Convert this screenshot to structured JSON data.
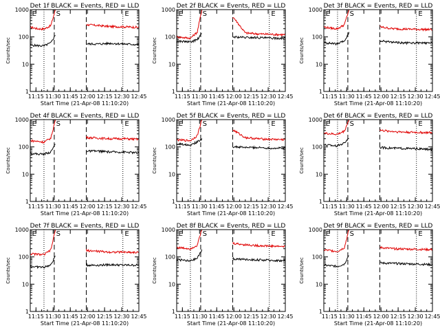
{
  "colors": {
    "events": "#000000",
    "lld": "#e00000",
    "background": "#ffffff"
  },
  "chart_data": {
    "type": "line",
    "scale": "log",
    "ylim": [
      1,
      1000
    ],
    "xlim_minutes": [
      0,
      95
    ],
    "x_tick_labels": [
      "11:15",
      "11:30",
      "11:45",
      "12:00",
      "12:15",
      "12:30",
      "12:45"
    ],
    "x_tick_minutes": [
      5,
      20,
      35,
      50,
      65,
      80,
      95
    ],
    "y_tick_labels": [
      "1",
      "10",
      "100",
      "1000"
    ],
    "y_tick_values": [
      1,
      10,
      100,
      1000
    ],
    "ylabel": "Counts/sec",
    "xlabel": "Start Time (21-Apr-08 11:10:20)",
    "dotted_lines_minutes": [
      12,
      81
    ],
    "dashed_lines_minutes": [
      21,
      49
    ],
    "markers": [
      {
        "label": "E",
        "minute": 1
      },
      {
        "label": "S",
        "minute": 22
      },
      {
        "label": "E",
        "minute": 82
      }
    ],
    "series_names": [
      "Events",
      "LLD"
    ],
    "panels": [
      {
        "title": "Det 1f BLACK = Events, RED = LLD",
        "events": [
          50,
          48,
          47,
          60,
          120,
          55,
          55,
          58,
          55,
          52
        ],
        "lld": [
          230,
          200,
          195,
          260,
          1000,
          280,
          260,
          240,
          235,
          225
        ]
      },
      {
        "title": "Det 2f BLACK = Events, RED = LLD",
        "events": [
          70,
          68,
          65,
          80,
          130,
          100,
          95,
          95,
          90,
          90
        ],
        "lld": [
          100,
          95,
          90,
          150,
          1000,
          500,
          140,
          130,
          125,
          120
        ]
      },
      {
        "title": "Det 3f BLACK = Events, RED = LLD",
        "events": [
          60,
          58,
          55,
          70,
          140,
          70,
          65,
          60,
          60,
          58
        ],
        "lld": [
          230,
          210,
          200,
          280,
          1000,
          230,
          200,
          195,
          190,
          185
        ]
      },
      {
        "title": "Det 4f BLACK = Events, RED = LLD",
        "events": [
          60,
          55,
          55,
          65,
          130,
          70,
          70,
          65,
          65,
          60
        ],
        "lld": [
          170,
          160,
          150,
          210,
          1000,
          220,
          210,
          200,
          200,
          190
        ]
      },
      {
        "title": "Det 5f BLACK = Events, RED = LLD",
        "events": [
          130,
          125,
          120,
          150,
          200,
          100,
          95,
          95,
          90,
          90
        ],
        "lld": [
          180,
          175,
          170,
          260,
          1000,
          400,
          220,
          200,
          190,
          185
        ]
      },
      {
        "title": "Det 6f BLACK = Events, RED = LLD",
        "events": [
          120,
          115,
          110,
          140,
          220,
          95,
          90,
          88,
          85,
          80
        ],
        "lld": [
          320,
          300,
          290,
          380,
          1000,
          400,
          370,
          350,
          340,
          330
        ]
      },
      {
        "title": "Det 7f BLACK = Events, RED = LLD",
        "events": [
          45,
          43,
          42,
          50,
          110,
          50,
          50,
          52,
          50,
          50
        ],
        "lld": [
          130,
          125,
          120,
          180,
          1000,
          170,
          160,
          150,
          150,
          145
        ]
      },
      {
        "title": "Det 8f BLACK = Events, RED = LLD",
        "events": [
          80,
          75,
          70,
          90,
          180,
          85,
          80,
          78,
          75,
          72
        ],
        "lld": [
          220,
          210,
          200,
          270,
          1000,
          310,
          280,
          260,
          250,
          240
        ]
      },
      {
        "title": "Det 9f BLACK = Events, RED = LLD",
        "events": [
          50,
          47,
          45,
          55,
          120,
          60,
          58,
          56,
          55,
          52
        ],
        "lld": [
          180,
          170,
          160,
          220,
          1000,
          220,
          200,
          195,
          190,
          185
        ]
      }
    ],
    "series_minutes": [
      0,
      6,
      12,
      18,
      22,
      50,
      60,
      70,
      82,
      95
    ]
  }
}
